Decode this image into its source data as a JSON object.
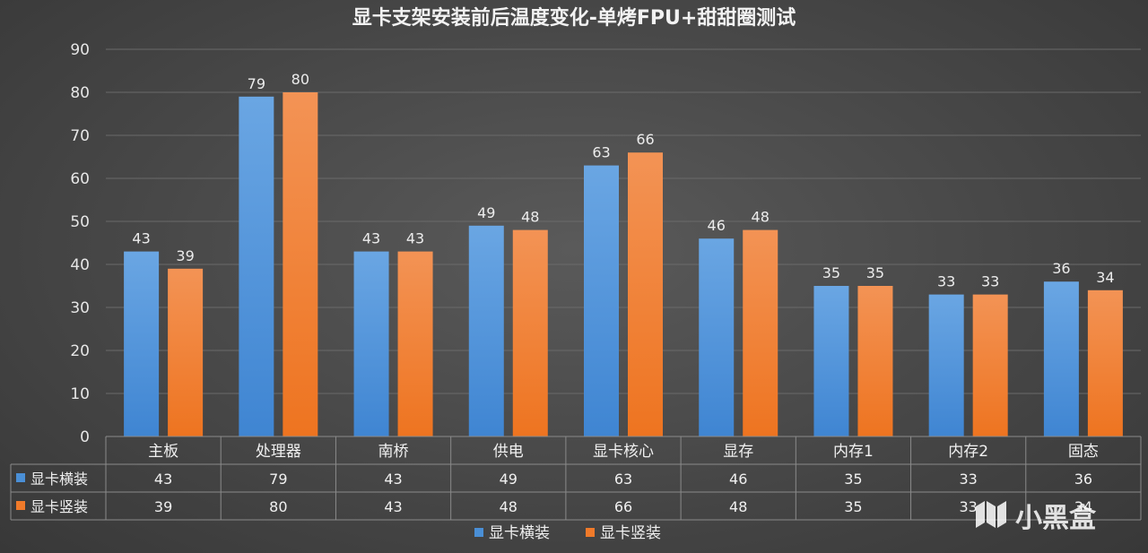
{
  "chart_data": {
    "type": "bar",
    "title": "显卡支架安装前后温度变化-单烤FPU+甜甜圈测试",
    "categories": [
      "主板",
      "处理器",
      "南桥",
      "供电",
      "显卡核心",
      "显存",
      "内存1",
      "内存2",
      "固态"
    ],
    "series": [
      {
        "name": "显卡横装",
        "values": [
          43,
          79,
          43,
          49,
          63,
          46,
          35,
          33,
          36
        ],
        "color": "#4a8fd6"
      },
      {
        "name": "显卡竖装",
        "values": [
          39,
          80,
          43,
          48,
          66,
          48,
          35,
          33,
          34
        ],
        "color": "#f07a2a"
      }
    ],
    "ylim": [
      0,
      90
    ],
    "yticks": [
      0,
      10,
      20,
      30,
      40,
      50,
      60,
      70,
      80,
      90
    ],
    "grid": true,
    "legend": "bottom",
    "data_table": true,
    "xlabel": "",
    "ylabel": ""
  },
  "watermark": "小黑盒"
}
